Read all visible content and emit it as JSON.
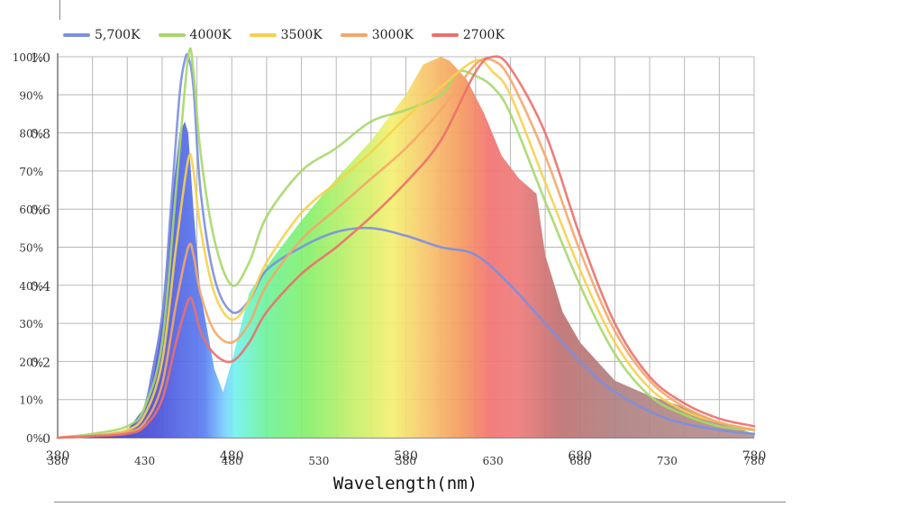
{
  "chart_data": {
    "type": "area",
    "title": "",
    "xlabel": "Wavelength(nm)",
    "ylabel": "",
    "xlim": [
      380,
      780
    ],
    "ylim": [
      0,
      1.0
    ],
    "x_ticks_primary": [
      "380",
      "480",
      "580",
      "680",
      "780"
    ],
    "x_ticks_secondary": [
      "380",
      "430",
      "480",
      "530",
      "580",
      "630",
      "680",
      "730",
      "780"
    ],
    "y_ticks_primary": [
      "0",
      "0.2",
      "0.4",
      "0.6",
      "0.8",
      "1.0"
    ],
    "y_ticks_secondary": [
      "0%",
      "10%",
      "20%",
      "30%",
      "40%",
      "50%",
      "60%",
      "70%",
      "80%",
      "90%",
      "100%"
    ],
    "grid": true,
    "legend_position": "top-left",
    "series": [
      {
        "name": "5,700K",
        "color": "#7b8fe0",
        "x": [
          380,
          400,
          420,
          430,
          440,
          445,
          450,
          453,
          455,
          458,
          462,
          470,
          480,
          490,
          500,
          520,
          540,
          560,
          580,
          600,
          620,
          640,
          660,
          680,
          700,
          730,
          760,
          780
        ],
        "y": [
          0.0,
          0.005,
          0.02,
          0.08,
          0.32,
          0.6,
          0.9,
          0.99,
          1.0,
          0.92,
          0.65,
          0.42,
          0.33,
          0.36,
          0.44,
          0.5,
          0.54,
          0.55,
          0.53,
          0.5,
          0.48,
          0.4,
          0.3,
          0.2,
          0.12,
          0.05,
          0.02,
          0.01
        ]
      },
      {
        "name": "4000K",
        "color": "#a6d86a",
        "x": [
          380,
          400,
          420,
          430,
          440,
          448,
          455,
          458,
          462,
          470,
          480,
          490,
          500,
          520,
          540,
          560,
          580,
          600,
          610,
          620,
          630,
          640,
          660,
          680,
          700,
          720,
          740,
          760,
          780
        ],
        "y": [
          0.0,
          0.01,
          0.03,
          0.08,
          0.25,
          0.65,
          1.0,
          0.96,
          0.75,
          0.52,
          0.4,
          0.46,
          0.58,
          0.7,
          0.76,
          0.83,
          0.86,
          0.9,
          0.96,
          0.95,
          0.92,
          0.85,
          0.62,
          0.4,
          0.22,
          0.11,
          0.06,
          0.03,
          0.02
        ]
      },
      {
        "name": "3500K",
        "color": "#f7d04c",
        "x": [
          380,
          400,
          420,
          430,
          440,
          448,
          455,
          458,
          462,
          470,
          480,
          490,
          500,
          520,
          540,
          560,
          580,
          600,
          620,
          630,
          640,
          660,
          680,
          700,
          720,
          740,
          760,
          780
        ],
        "y": [
          0.0,
          0.005,
          0.02,
          0.06,
          0.2,
          0.5,
          0.73,
          0.7,
          0.55,
          0.38,
          0.31,
          0.36,
          0.46,
          0.59,
          0.67,
          0.75,
          0.84,
          0.92,
          0.99,
          0.96,
          0.9,
          0.67,
          0.44,
          0.25,
          0.13,
          0.07,
          0.04,
          0.02
        ]
      },
      {
        "name": "3000K",
        "color": "#f5a668",
        "x": [
          380,
          400,
          420,
          430,
          440,
          448,
          455,
          458,
          462,
          470,
          480,
          490,
          500,
          520,
          540,
          560,
          580,
          600,
          620,
          630,
          640,
          660,
          680,
          700,
          720,
          740,
          760,
          780
        ],
        "y": [
          0.0,
          0.005,
          0.015,
          0.04,
          0.14,
          0.35,
          0.5,
          0.48,
          0.38,
          0.28,
          0.25,
          0.3,
          0.4,
          0.52,
          0.6,
          0.68,
          0.76,
          0.86,
          0.98,
          0.99,
          0.94,
          0.74,
          0.49,
          0.28,
          0.15,
          0.08,
          0.04,
          0.02
        ]
      },
      {
        "name": "2700K",
        "color": "#ec6f6c",
        "x": [
          380,
          400,
          420,
          430,
          440,
          448,
          455,
          458,
          462,
          470,
          480,
          490,
          500,
          520,
          540,
          560,
          580,
          600,
          620,
          630,
          640,
          660,
          680,
          700,
          720,
          740,
          760,
          780
        ],
        "y": [
          0.0,
          0.004,
          0.01,
          0.03,
          0.1,
          0.25,
          0.36,
          0.35,
          0.28,
          0.22,
          0.2,
          0.25,
          0.33,
          0.43,
          0.5,
          0.58,
          0.67,
          0.78,
          0.96,
          1.0,
          0.97,
          0.8,
          0.53,
          0.3,
          0.16,
          0.09,
          0.05,
          0.03
        ]
      }
    ],
    "filled_spectrum": {
      "x": [
        380,
        400,
        420,
        430,
        440,
        445,
        450,
        453,
        455,
        458,
        462,
        470,
        475,
        480,
        490,
        500,
        520,
        540,
        560,
        580,
        590,
        600,
        605,
        615,
        625,
        635,
        645,
        650,
        655,
        660,
        670,
        680,
        700,
        720,
        740,
        760,
        780
      ],
      "y": [
        0.0,
        0.005,
        0.02,
        0.08,
        0.32,
        0.6,
        0.8,
        0.83,
        0.8,
        0.6,
        0.38,
        0.18,
        0.12,
        0.2,
        0.38,
        0.45,
        0.57,
        0.68,
        0.78,
        0.9,
        0.98,
        1.0,
        0.99,
        0.94,
        0.85,
        0.74,
        0.68,
        0.66,
        0.64,
        0.48,
        0.33,
        0.25,
        0.15,
        0.11,
        0.08,
        0.04,
        0.01
      ]
    }
  }
}
